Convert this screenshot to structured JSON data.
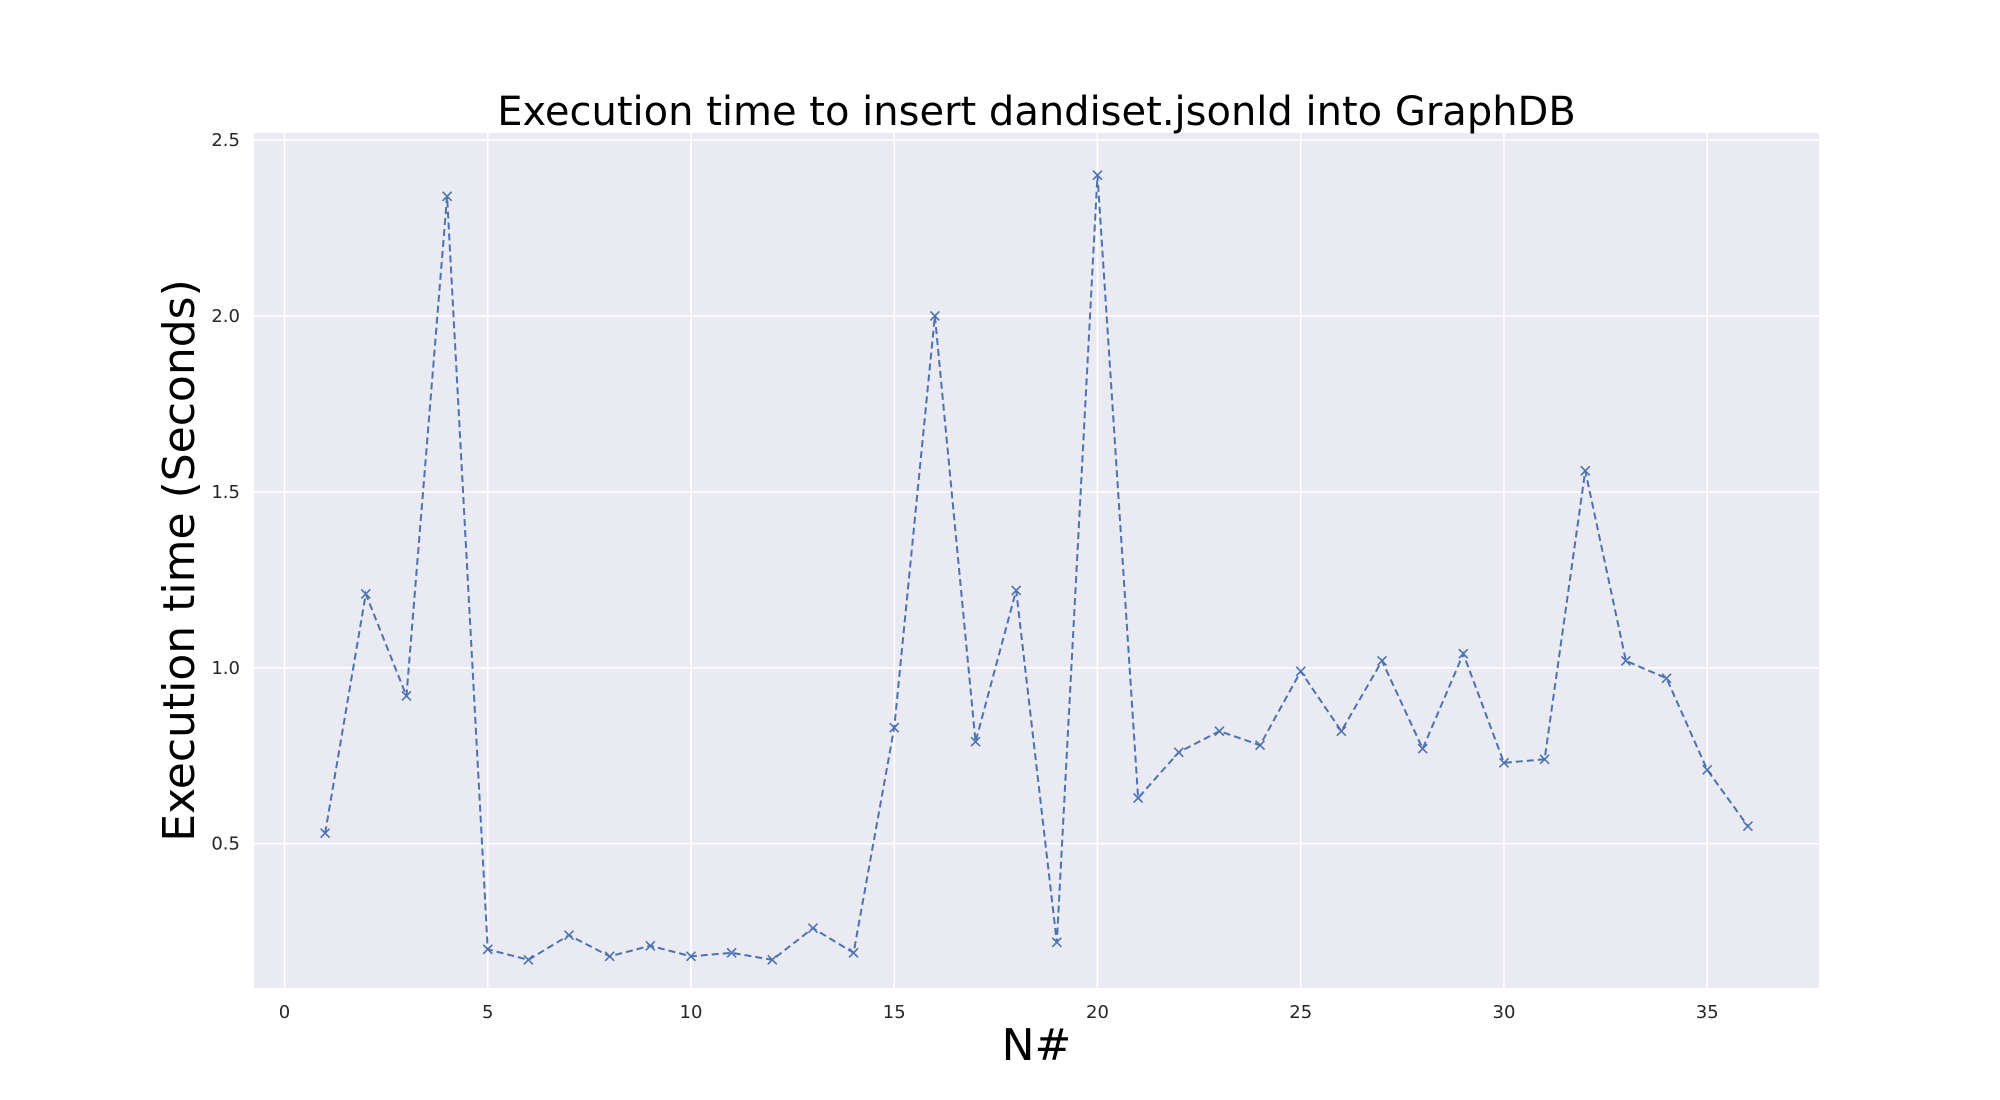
{
  "chart_data": {
    "type": "line",
    "title": "Execution time to insert dandiset.jsonld into GraphDB",
    "xlabel": "N#",
    "ylabel": "Execution time (Seconds)",
    "x": [
      1,
      2,
      3,
      4,
      5,
      6,
      7,
      8,
      9,
      10,
      11,
      12,
      13,
      14,
      15,
      16,
      17,
      18,
      19,
      20,
      21,
      22,
      23,
      24,
      25,
      26,
      27,
      28,
      29,
      30,
      31,
      32,
      33,
      34,
      35,
      36
    ],
    "series": [
      {
        "values": [
          0.53,
          1.21,
          0.92,
          2.34,
          0.2,
          0.17,
          0.24,
          0.18,
          0.21,
          0.18,
          0.19,
          0.17,
          0.26,
          0.19,
          0.83,
          2.0,
          0.79,
          1.22,
          0.22,
          2.4,
          0.63,
          0.76,
          0.82,
          0.78,
          0.99,
          0.82,
          1.02,
          0.77,
          1.04,
          0.73,
          0.74,
          1.56,
          1.02,
          0.97,
          0.71,
          0.55
        ],
        "line_style": "dashed",
        "marker": "x"
      }
    ],
    "xlim": [
      -0.75,
      37.75
    ],
    "ylim": [
      0.09,
      2.52
    ],
    "x_ticks": [
      0,
      5,
      10,
      15,
      20,
      25,
      30,
      35
    ],
    "y_ticks": [
      0.5,
      1.0,
      1.5,
      2.0,
      2.5
    ],
    "y_tick_labels": [
      "0.5",
      "1.0",
      "1.5",
      "2.0",
      "2.5"
    ],
    "grid": true,
    "colors": {
      "line": "#4c72b0",
      "plot_background": "#eaeaf2",
      "grid": "#ffffff"
    }
  }
}
